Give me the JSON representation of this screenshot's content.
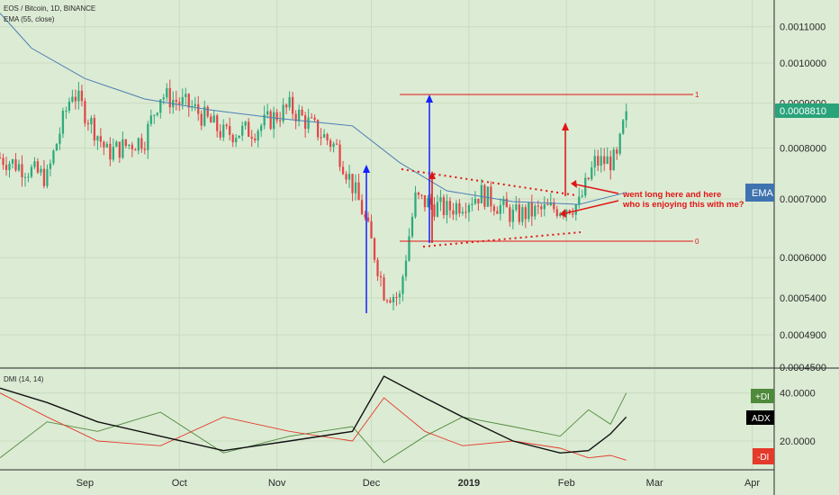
{
  "colors": {
    "background": "#dcebd4",
    "up_candle": "#2eaa7c",
    "down_candle": "#e04848",
    "ema_line": "#4d7fb3",
    "plus_di": "#4f8a3c",
    "minus_di": "#e43a2a",
    "adx": "#111111",
    "annotation_red": "#e01515",
    "annotation_blue": "#1520ff",
    "price_badge": "#29a37a",
    "ema_badge": "#3f73b0"
  },
  "header": {
    "symbol_line": "EOS / Bitcoin, 1D, BINANCE",
    "indicator_line": "EMA (55, close)"
  },
  "dmi_header": {
    "label": "DMI (14, 14)"
  },
  "x_axis": {
    "labels": [
      "Sep",
      "Oct",
      "Nov",
      "Dec",
      "2019",
      "Feb",
      "Mar",
      "Apr"
    ]
  },
  "price_axis": {
    "ticks": [
      "0.0011000",
      "0.0010000",
      "0.0009000",
      "0.0008000",
      "0.0007000",
      "0.0006000",
      "0.0005400",
      "0.0004900",
      "0.0004500"
    ],
    "current_price_label": "0.0008810",
    "ema_label": "EMA"
  },
  "dmi_axis": {
    "ticks": [
      "40.0000",
      "20.0000"
    ],
    "plus_di_label": "+DI",
    "adx_label": "ADX",
    "minus_di_label": "-DI"
  },
  "annotations": {
    "level_top_label": "1",
    "level_bottom_label": "0",
    "text_line1": "went long here and here",
    "text_line2": "who is enjoying this with me?"
  },
  "chart_data": [
    {
      "type": "candlestick",
      "title": "EOS / Bitcoin, 1D, BINANCE",
      "x_range": [
        "2018-08-05",
        "2019-04-08"
      ],
      "y_scale": "log",
      "ylim": [
        0.00045,
        0.00118
      ],
      "y_ticks": [
        0.0011,
        0.001,
        0.0009,
        0.0008,
        0.0007,
        0.0006,
        0.00054,
        0.00049,
        0.00045
      ],
      "ohlc_points": [
        {
          "date": "2018-08-05",
          "price": 0.00078
        },
        {
          "date": "2018-08-20",
          "price": 0.00074
        },
        {
          "date": "2018-08-28",
          "price": 0.00093
        },
        {
          "date": "2018-09-08",
          "price": 0.00079
        },
        {
          "date": "2018-09-20",
          "price": 0.00082
        },
        {
          "date": "2018-09-25",
          "price": 0.00092
        },
        {
          "date": "2018-10-05",
          "price": 0.00089
        },
        {
          "date": "2018-10-15",
          "price": 0.00083
        },
        {
          "date": "2018-10-25",
          "price": 0.00084
        },
        {
          "date": "2018-11-05",
          "price": 0.00089
        },
        {
          "date": "2018-11-15",
          "price": 0.00083
        },
        {
          "date": "2018-11-20",
          "price": 0.0008
        },
        {
          "date": "2018-11-28",
          "price": 0.00068
        },
        {
          "date": "2018-12-05",
          "price": 0.00055
        },
        {
          "date": "2018-12-10",
          "price": 0.00054
        },
        {
          "date": "2018-12-15",
          "price": 0.0007
        },
        {
          "date": "2018-12-25",
          "price": 0.00068
        },
        {
          "date": "2019-01-05",
          "price": 0.00071
        },
        {
          "date": "2019-01-15",
          "price": 0.00067
        },
        {
          "date": "2019-01-25",
          "price": 0.00068
        },
        {
          "date": "2019-02-05",
          "price": 0.00069
        },
        {
          "date": "2019-02-10",
          "price": 0.00077
        },
        {
          "date": "2019-02-17",
          "price": 0.000775
        },
        {
          "date": "2019-02-20",
          "price": 0.000881
        }
      ],
      "series": [
        {
          "name": "EMA (55, close)",
          "points": [
            [
              "2018-08-05",
              0.00114
            ],
            [
              "2018-08-15",
              0.00104
            ],
            [
              "2018-09-01",
              0.00096
            ],
            [
              "2018-09-20",
              0.00091
            ],
            [
              "2018-10-10",
              0.000885
            ],
            [
              "2018-11-01",
              0.000865
            ],
            [
              "2018-11-25",
              0.000848
            ],
            [
              "2018-12-10",
              0.00077
            ],
            [
              "2018-12-25",
              0.000715
            ],
            [
              "2019-01-15",
              0.000695
            ],
            [
              "2019-02-05",
              0.00069
            ],
            [
              "2019-02-20",
              0.000712
            ]
          ]
        }
      ],
      "current_price": 0.000881
    },
    {
      "type": "line",
      "title": "DMI (14, 14)",
      "ylim": [
        8,
        50
      ],
      "y_ticks": [
        40,
        20
      ],
      "series": [
        {
          "name": "+DI",
          "points": [
            [
              "2018-08-05",
              13
            ],
            [
              "2018-08-20",
              28
            ],
            [
              "2018-09-05",
              24
            ],
            [
              "2018-09-25",
              32
            ],
            [
              "2018-10-15",
              15
            ],
            [
              "2018-11-05",
              22
            ],
            [
              "2018-11-25",
              26
            ],
            [
              "2018-12-05",
              11
            ],
            [
              "2018-12-18",
              22
            ],
            [
              "2018-12-30",
              30
            ],
            [
              "2019-01-15",
              26
            ],
            [
              "2019-01-30",
              22
            ],
            [
              "2019-02-08",
              33
            ],
            [
              "2019-02-15",
              27
            ],
            [
              "2019-02-20",
              40
            ]
          ]
        },
        {
          "name": "-DI",
          "points": [
            [
              "2018-08-05",
              40
            ],
            [
              "2018-08-20",
              30
            ],
            [
              "2018-09-05",
              20
            ],
            [
              "2018-09-25",
              18
            ],
            [
              "2018-10-15",
              30
            ],
            [
              "2018-11-05",
              24
            ],
            [
              "2018-11-25",
              20
            ],
            [
              "2018-12-05",
              38
            ],
            [
              "2018-12-18",
              24
            ],
            [
              "2018-12-30",
              18
            ],
            [
              "2019-01-15",
              20
            ],
            [
              "2019-01-30",
              17
            ],
            [
              "2019-02-08",
              13
            ],
            [
              "2019-02-15",
              14
            ],
            [
              "2019-02-20",
              12
            ]
          ]
        },
        {
          "name": "ADX",
          "points": [
            [
              "2018-08-05",
              42
            ],
            [
              "2018-08-20",
              36
            ],
            [
              "2018-09-05",
              28
            ],
            [
              "2018-09-25",
              22
            ],
            [
              "2018-10-15",
              16
            ],
            [
              "2018-11-05",
              20
            ],
            [
              "2018-11-25",
              24
            ],
            [
              "2018-12-05",
              47
            ],
            [
              "2018-12-18",
              38
            ],
            [
              "2018-12-30",
              30
            ],
            [
              "2019-01-15",
              20
            ],
            [
              "2019-01-30",
              15
            ],
            [
              "2019-02-08",
              16
            ],
            [
              "2019-02-15",
              23
            ],
            [
              "2019-02-20",
              30
            ]
          ]
        }
      ]
    }
  ]
}
